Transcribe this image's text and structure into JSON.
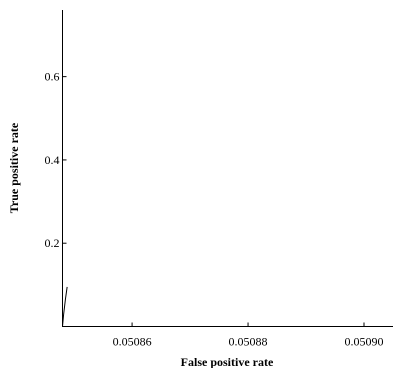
{
  "chart_data": {
    "type": "line",
    "title": "",
    "xlabel": "False positive rate",
    "ylabel": "True positive rate",
    "xlim": [
      0.050848,
      0.050905
    ],
    "ylim": [
      0.0,
      0.76
    ],
    "xticks": [
      0.05086,
      0.05088,
      0.0509
    ],
    "xtick_labels": [
      "0.05086",
      "0.05088",
      "0.05090"
    ],
    "yticks": [
      0.2,
      0.4,
      0.6
    ],
    "ytick_labels": [
      "0.2",
      "0.4",
      "0.6"
    ],
    "grid": false,
    "series": [
      {
        "color": "#000000",
        "x": [
          0.050848,
          0.0508482,
          0.0508485,
          0.0508488
        ],
        "y": [
          0.0,
          0.03,
          0.065,
          0.095
        ]
      }
    ]
  }
}
